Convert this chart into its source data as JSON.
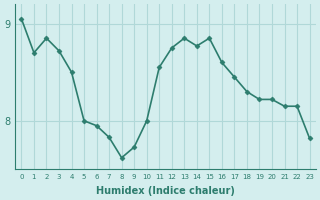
{
  "x": [
    0,
    1,
    2,
    3,
    4,
    5,
    6,
    7,
    8,
    9,
    10,
    11,
    12,
    13,
    14,
    15,
    16,
    17,
    18,
    19,
    20,
    21,
    22,
    23
  ],
  "y": [
    9.05,
    8.7,
    8.85,
    8.72,
    8.5,
    8.0,
    7.95,
    7.83,
    7.62,
    7.73,
    8.0,
    8.55,
    8.75,
    8.85,
    8.77,
    8.85,
    8.6,
    8.45,
    8.3,
    8.22,
    8.22,
    8.15,
    8.15,
    7.82
  ],
  "line_color": "#2d7d6e",
  "marker_color": "#2d7d6e",
  "bg_color": "#d4eeee",
  "grid_color": "#b0d8d8",
  "axis_color": "#2d7d6e",
  "xlabel": "Humidex (Indice chaleur)",
  "yticks": [
    8,
    9
  ],
  "ylim": [
    7.5,
    9.2
  ],
  "xlim": [
    -0.5,
    23.5
  ]
}
